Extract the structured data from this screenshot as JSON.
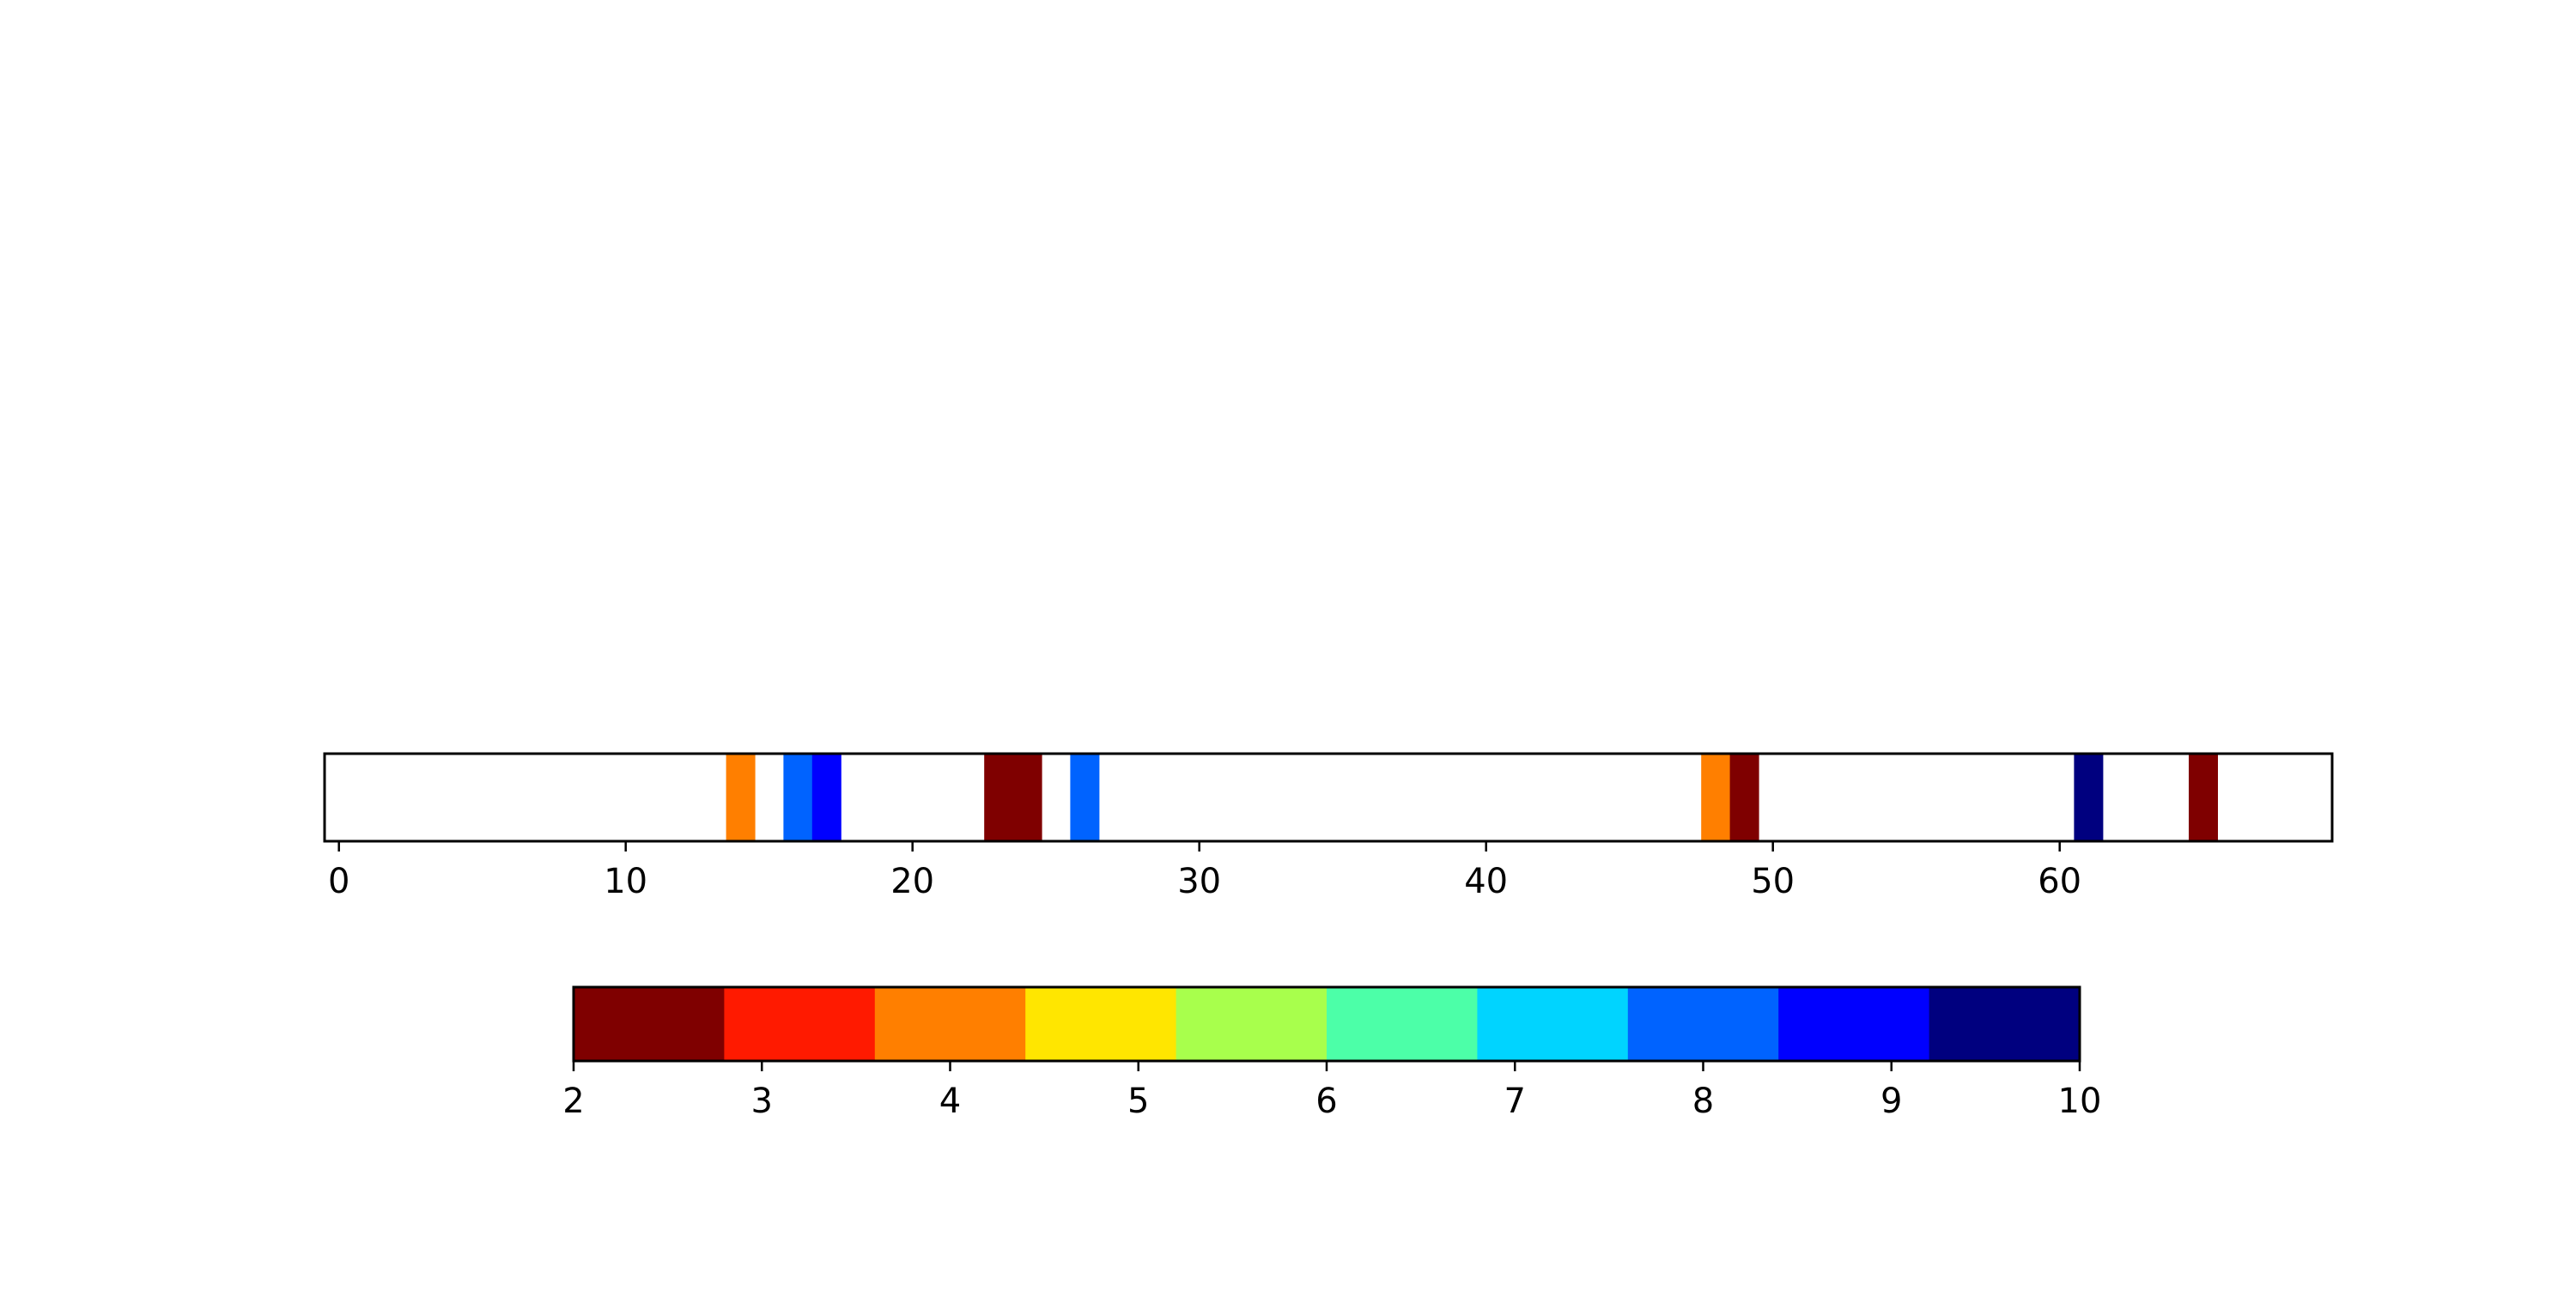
{
  "chart_data": [
    {
      "type": "heatmap",
      "title": "",
      "xlabel": "",
      "ylabel": "",
      "xlim": [
        -0.5,
        69.5
      ],
      "xticks": [
        0,
        10,
        20,
        30,
        40,
        50,
        60
      ],
      "grid": false,
      "cells": [
        {
          "x": 14,
          "value": 4
        },
        {
          "x": 16,
          "value": 8
        },
        {
          "x": 17,
          "value": 9
        },
        {
          "x": 23,
          "value": 2
        },
        {
          "x": 24,
          "value": 2
        },
        {
          "x": 26,
          "value": 8
        },
        {
          "x": 48,
          "value": 4
        },
        {
          "x": 49,
          "value": 2
        },
        {
          "x": 61,
          "value": 10
        },
        {
          "x": 65,
          "value": 2
        }
      ]
    },
    {
      "type": "colorbar",
      "orientation": "horizontal",
      "range": [
        2,
        10
      ],
      "ticks": [
        2,
        3,
        4,
        5,
        6,
        7,
        8,
        9,
        10
      ],
      "bin_edges": [
        2.0,
        2.8,
        3.6,
        4.4,
        5.2,
        6.0,
        6.8,
        7.6,
        8.4,
        9.2,
        10.0
      ],
      "colors": [
        "#7f0000",
        "#ff1a00",
        "#ff7f00",
        "#ffe600",
        "#a8ff4c",
        "#4cffa8",
        "#00d4ff",
        "#0063ff",
        "#0000ff",
        "#00007f"
      ]
    }
  ]
}
